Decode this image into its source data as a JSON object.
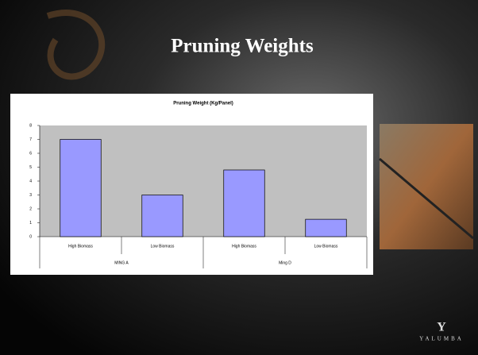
{
  "slide_title": "Pruning Weights",
  "logo": "YALUMBA",
  "chart_data": {
    "type": "bar",
    "title": "Pruning Weight (Kg/Panel)",
    "categories": [
      "High Biomass",
      "Low Biomass",
      "High Biomass",
      "Low Biomass"
    ],
    "groups": [
      "MING A",
      "Ming D"
    ],
    "values": [
      7.0,
      3.0,
      4.8,
      1.25
    ],
    "color": "#9999ff",
    "ylim": [
      0,
      8
    ],
    "yticks": [
      0,
      1,
      2,
      3,
      4,
      5,
      6,
      7,
      8
    ],
    "grid": false
  }
}
